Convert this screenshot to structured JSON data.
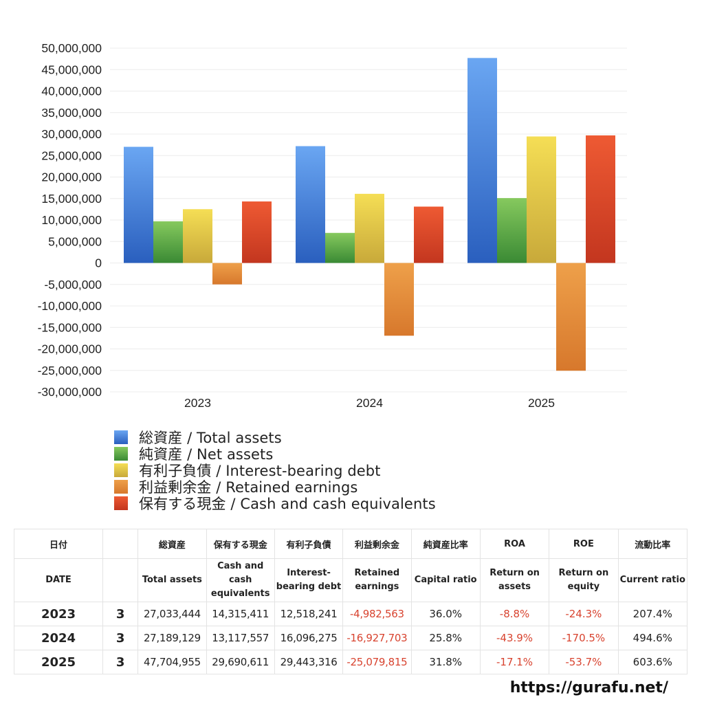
{
  "chart_data": {
    "type": "bar",
    "categories": [
      "2023",
      "2024",
      "2025"
    ],
    "series": [
      {
        "name": "総資産 / Total assets",
        "color_top": "#6aa6f2",
        "color_bottom": "#2a5fbe",
        "values": [
          27033444,
          27189129,
          47704955
        ]
      },
      {
        "name": "純資産 / Net assets",
        "color_top": "#86c95e",
        "color_bottom": "#3a8a34",
        "values": [
          9700000,
          7000000,
          15100000
        ]
      },
      {
        "name": "有利子負債 / Interest-bearing debt",
        "color_top": "#f5de55",
        "color_bottom": "#c8a93a",
        "values": [
          12518241,
          16096275,
          29443316
        ]
      },
      {
        "name": "利益剰余金 / Retained earnings",
        "color_top": "#eea04a",
        "color_bottom": "#d7782c",
        "values": [
          -4982563,
          -16927703,
          -25079815
        ]
      },
      {
        "name": "保有する現金 /  Cash and cash equivalents",
        "color_top": "#ee5a33",
        "color_bottom": "#c3361f",
        "values": [
          14315411,
          13117557,
          29690611
        ]
      }
    ],
    "ylim": [
      -30000000,
      50000000
    ],
    "yticks": [
      {
        "value": 50000000,
        "label": "50,000,000"
      },
      {
        "value": 45000000,
        "label": "45,000,000"
      },
      {
        "value": 40000000,
        "label": "40,000,000"
      },
      {
        "value": 35000000,
        "label": "35,000,000"
      },
      {
        "value": 30000000,
        "label": "30,000,000"
      },
      {
        "value": 25000000,
        "label": "25,000,000"
      },
      {
        "value": 20000000,
        "label": "20,000,000"
      },
      {
        "value": 15000000,
        "label": "15,000,000"
      },
      {
        "value": 10000000,
        "label": "10,000,000"
      },
      {
        "value": 5000000,
        "label": "5,000,000"
      },
      {
        "value": 0,
        "label": "0"
      },
      {
        "value": -5000000,
        "label": "-5,000,000"
      },
      {
        "value": -10000000,
        "label": "-10,000,000"
      },
      {
        "value": -15000000,
        "label": "-15,000,000"
      },
      {
        "value": -20000000,
        "label": "-20,000,000"
      },
      {
        "value": -25000000,
        "label": "-25,000,000"
      },
      {
        "value": -30000000,
        "label": "-30,000,000"
      }
    ],
    "grid": true,
    "legend_position": "bottom-left"
  },
  "table": {
    "header_jp": [
      "日付",
      "",
      "総資産",
      "保有する現金",
      "有利子負債",
      "利益剰余金",
      "純資産比率",
      "ROA",
      "ROE",
      "流動比率"
    ],
    "header_en": [
      "DATE",
      "",
      "Total assets",
      "Cash and cash equivalents",
      "Interest-bearing debt",
      "Retained earnings",
      "Capital ratio",
      "Return on assets",
      "Return on equity",
      "Current ratio"
    ],
    "rows": [
      {
        "year": "2023",
        "month": "3",
        "total_assets": "27,033,444",
        "cash": "14,315,411",
        "debt": "12,518,241",
        "retained": "-4,982,563",
        "capital_ratio": "36.0%",
        "roa": "-8.8%",
        "roe": "-24.3%",
        "current_ratio": "207.4%"
      },
      {
        "year": "2024",
        "month": "3",
        "total_assets": "27,189,129",
        "cash": "13,117,557",
        "debt": "16,096,275",
        "retained": "-16,927,703",
        "capital_ratio": "25.8%",
        "roa": "-43.9%",
        "roe": "-170.5%",
        "current_ratio": "494.6%"
      },
      {
        "year": "2025",
        "month": "3",
        "total_assets": "47,704,955",
        "cash": "29,690,611",
        "debt": "29,443,316",
        "retained": "-25,079,815",
        "capital_ratio": "31.8%",
        "roa": "-17.1%",
        "roe": "-53.7%",
        "current_ratio": "603.6%"
      }
    ]
  },
  "site_url": "https://gurafu.net/"
}
